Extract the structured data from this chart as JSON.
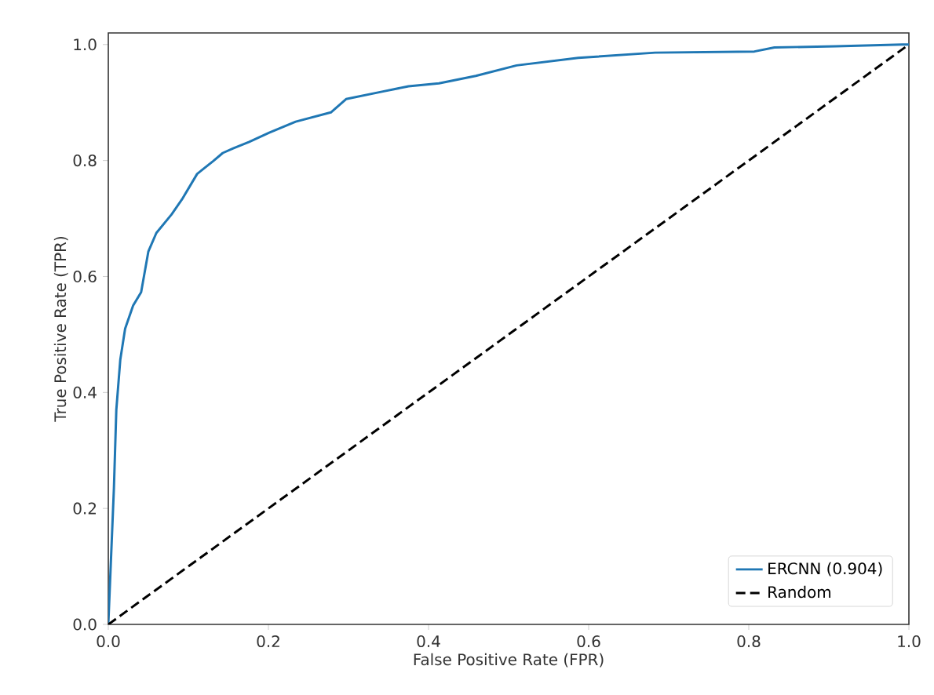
{
  "chart_data": {
    "type": "line",
    "xlabel": "False Positive Rate (FPR)",
    "ylabel": "True Positive Rate (TPR)",
    "xlim": [
      0,
      1
    ],
    "ylim": [
      0,
      1.02
    ],
    "xticks": [
      {
        "value": 0,
        "label": "0.0"
      },
      {
        "value": 0.2,
        "label": "0.2"
      },
      {
        "value": 0.4,
        "label": "0.4"
      },
      {
        "value": 0.6,
        "label": "0.6"
      },
      {
        "value": 0.8,
        "label": "0.8"
      },
      {
        "value": 1,
        "label": "1.0"
      }
    ],
    "yticks": [
      {
        "value": 0,
        "label": "0.0"
      },
      {
        "value": 0.2,
        "label": "0.2"
      },
      {
        "value": 0.4,
        "label": "0.4"
      },
      {
        "value": 0.6,
        "label": "0.6"
      },
      {
        "value": 0.8,
        "label": "0.8"
      },
      {
        "value": 1,
        "label": "1.0"
      }
    ],
    "grid": false,
    "legend": "bottom right",
    "marker": "none",
    "series": [
      {
        "name": "ERCNN (0.904)",
        "color": "#1f77b4",
        "line_style": "solid",
        "x": [
          0,
          0.007,
          0.01,
          0.015,
          0.021,
          0.031,
          0.041,
          0.05,
          0.06,
          0.079,
          0.092,
          0.111,
          0.131,
          0.143,
          0.156,
          0.176,
          0.201,
          0.234,
          0.278,
          0.297,
          0.343,
          0.375,
          0.413,
          0.459,
          0.51,
          0.587,
          0.683,
          0.807,
          0.832,
          0.909,
          0.992,
          1
        ],
        "values": [
          0,
          0.235,
          0.37,
          0.457,
          0.51,
          0.55,
          0.573,
          0.643,
          0.675,
          0.707,
          0.733,
          0.777,
          0.799,
          0.813,
          0.821,
          0.832,
          0.848,
          0.867,
          0.883,
          0.906,
          0.919,
          0.928,
          0.933,
          0.946,
          0.964,
          0.977,
          0.986,
          0.988,
          0.995,
          0.997,
          1,
          1
        ]
      },
      {
        "name": "Random",
        "color": "#000000",
        "line_style": "dashed",
        "x": [
          0,
          1
        ],
        "values": [
          0,
          1
        ]
      }
    ]
  }
}
